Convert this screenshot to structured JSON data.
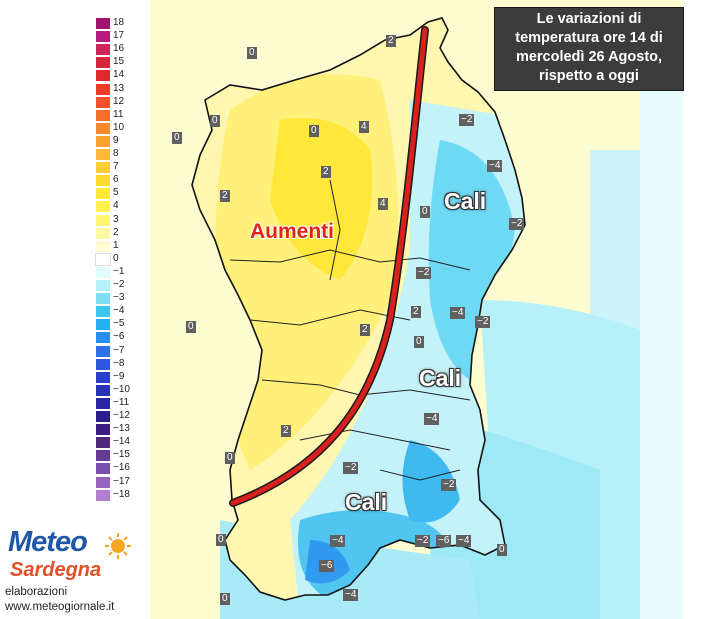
{
  "title": {
    "line1": "Le variazioni di",
    "line2": "temperatura ore 14 di",
    "line3": "mercoledì 26 Agosto,",
    "line4": "rispetto a oggi"
  },
  "legend": [
    {
      "label": "18",
      "color": "#a0146e"
    },
    {
      "label": "17",
      "color": "#b41e7c"
    },
    {
      "label": "16",
      "color": "#c8285a"
    },
    {
      "label": "15",
      "color": "#d2283c"
    },
    {
      "label": "14",
      "color": "#e0282a"
    },
    {
      "label": "13",
      "color": "#eb3c28"
    },
    {
      "label": "12",
      "color": "#f0502a"
    },
    {
      "label": "11",
      "color": "#f36e2a"
    },
    {
      "label": "10",
      "color": "#f7882c"
    },
    {
      "label": "9",
      "color": "#f9a232"
    },
    {
      "label": "8",
      "color": "#fbb83a"
    },
    {
      "label": "7",
      "color": "#fdcc38"
    },
    {
      "label": "6",
      "color": "#fedc2e"
    },
    {
      "label": "5",
      "color": "#ffe83a"
    },
    {
      "label": "4",
      "color": "#fff050"
    },
    {
      "label": "3",
      "color": "#fff478"
    },
    {
      "label": "2",
      "color": "#fff8a4"
    },
    {
      "label": "1",
      "color": "#fffcd2"
    },
    {
      "label": "0",
      "color": "#ffffff"
    },
    {
      "label": "−1",
      "color": "#e2fbfb"
    },
    {
      "label": "−2",
      "color": "#b6f0f8"
    },
    {
      "label": "−3",
      "color": "#7fe0f5"
    },
    {
      "label": "−4",
      "color": "#3ec8f0"
    },
    {
      "label": "−5",
      "color": "#25aef0"
    },
    {
      "label": "−6",
      "color": "#2a8ef0"
    },
    {
      "label": "−7",
      "color": "#2d70e8"
    },
    {
      "label": "−8",
      "color": "#2e55dc"
    },
    {
      "label": "−9",
      "color": "#2a40c8"
    },
    {
      "label": "−10",
      "color": "#2832b4"
    },
    {
      "label": "−11",
      "color": "#2826a0"
    },
    {
      "label": "−12",
      "color": "#2a1e8c"
    },
    {
      "label": "−13",
      "color": "#3c1e82"
    },
    {
      "label": "−14",
      "color": "#50287c"
    },
    {
      "label": "−15",
      "color": "#643c96"
    },
    {
      "label": "−16",
      "color": "#7a50aa"
    },
    {
      "label": "−17",
      "color": "#9664be"
    },
    {
      "label": "−18",
      "color": "#b47ed2"
    }
  ],
  "annotations": {
    "increase": "Aumenti",
    "decrease_north": "Cali",
    "decrease_center": "Cali",
    "decrease_south": "Cali"
  },
  "contour_labels": {
    "l1": "0",
    "l2": "2",
    "l3": "0",
    "l4": "0",
    "l5": "0",
    "l6": "4",
    "l7": "−2",
    "l8": "2",
    "l9": "2",
    "l10": "−4",
    "l11": "4",
    "l12": "0",
    "l13": "−2",
    "l14": "−2",
    "l15": "2",
    "l16": "0",
    "l17": "−4",
    "l18": "−2",
    "l19": "2",
    "l20": "0",
    "l21": "−4",
    "l22": "2",
    "l23": "0",
    "l24": "−2",
    "l25": "−2",
    "l26": "−2",
    "l27": "−6",
    "l28": "−4",
    "l29": "0",
    "l30": "0",
    "l31": "−4",
    "l32": "−6",
    "l33": "−4",
    "l34": "0"
  },
  "branding": {
    "logo_top": "Meteo",
    "logo_bottom": "Sardegna",
    "credit_line1": "elaborazioni",
    "credit_line2": "www.meteogiornale.it"
  },
  "colors": {
    "sea": "#ffffff",
    "land_base": "#fdfbd0",
    "warm": "#fff29a",
    "cool": "#bff1f8",
    "cool_strong": "#4ccaf0",
    "front_line": "#d8211d",
    "title_bg": "#3c3c3c"
  }
}
